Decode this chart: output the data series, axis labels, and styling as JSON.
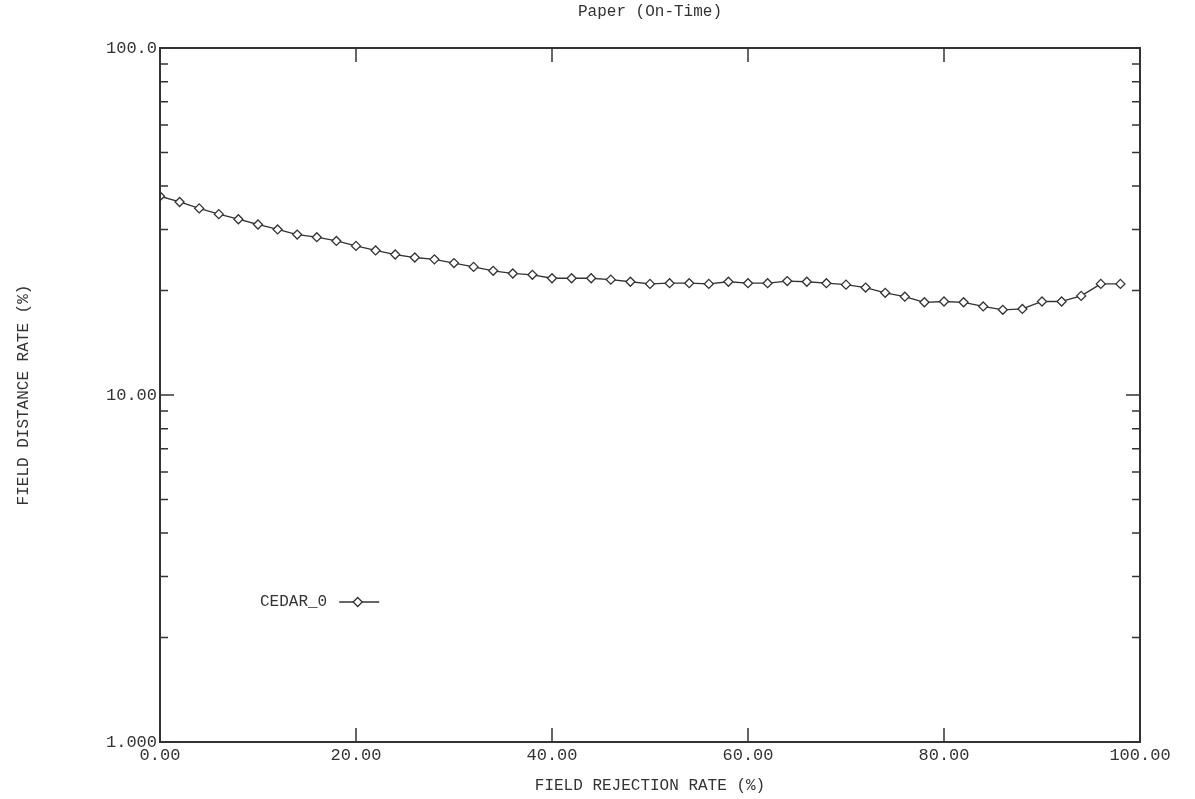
{
  "chart_data": {
    "type": "line",
    "title": "Paper (On-Time)",
    "xlabel": "FIELD REJECTION RATE (%)",
    "ylabel": "FIELD DISTANCE RATE (%)",
    "x": [
      0,
      2,
      4,
      6,
      8,
      10,
      12,
      14,
      16,
      18,
      20,
      22,
      24,
      26,
      28,
      30,
      32,
      34,
      36,
      38,
      40,
      42,
      44,
      46,
      48,
      50,
      52,
      54,
      56,
      58,
      60,
      62,
      64,
      66,
      68,
      70,
      72,
      74,
      76,
      78,
      80,
      82,
      84,
      86,
      88,
      90,
      92,
      94,
      96,
      98
    ],
    "series": [
      {
        "name": "CEDAR_0",
        "color": "#333333",
        "values": [
          37.4,
          36.0,
          34.5,
          33.2,
          32.1,
          31.0,
          30.0,
          29.0,
          28.5,
          27.8,
          26.9,
          26.1,
          25.4,
          24.9,
          24.6,
          24.0,
          23.4,
          22.8,
          22.4,
          22.2,
          21.7,
          21.7,
          21.7,
          21.5,
          21.2,
          20.9,
          21.0,
          21.0,
          20.9,
          21.2,
          21.0,
          21.0,
          21.3,
          21.2,
          21.0,
          20.8,
          20.4,
          19.7,
          19.2,
          18.5,
          18.6,
          18.5,
          18.0,
          17.6,
          17.7,
          18.6,
          18.6,
          19.3,
          20.9,
          20.9
        ]
      }
    ],
    "log": "y",
    "xlim": [
      0,
      100
    ],
    "xticks": [
      {
        "value": 0,
        "label": "0.00"
      },
      {
        "value": 20,
        "label": "20.00"
      },
      {
        "value": 40,
        "label": "40.00"
      },
      {
        "value": 60,
        "label": "60.00"
      },
      {
        "value": 80,
        "label": "80.00"
      },
      {
        "value": 100,
        "label": "100.00"
      }
    ],
    "ylim": [
      1,
      100
    ],
    "yticks": [
      {
        "value": 1,
        "label": "1.000"
      },
      {
        "value": 2,
        "label": null
      },
      {
        "value": 3,
        "label": null
      },
      {
        "value": 4,
        "label": null
      },
      {
        "value": 5,
        "label": null
      },
      {
        "value": 6,
        "label": null
      },
      {
        "value": 7,
        "label": null
      },
      {
        "value": 8,
        "label": null
      },
      {
        "value": 9,
        "label": null
      },
      {
        "value": 10,
        "label": "10.00"
      },
      {
        "value": 20,
        "label": null
      },
      {
        "value": 30,
        "label": null
      },
      {
        "value": 40,
        "label": null
      },
      {
        "value": 50,
        "label": null
      },
      {
        "value": 60,
        "label": null
      },
      {
        "value": 70,
        "label": null
      },
      {
        "value": 80,
        "label": null
      },
      {
        "value": 90,
        "label": null
      },
      {
        "value": 100,
        "label": "100.0"
      }
    ],
    "grid": false,
    "legend": "bottom left",
    "marker": "diamond",
    "line_style": "solid"
  }
}
